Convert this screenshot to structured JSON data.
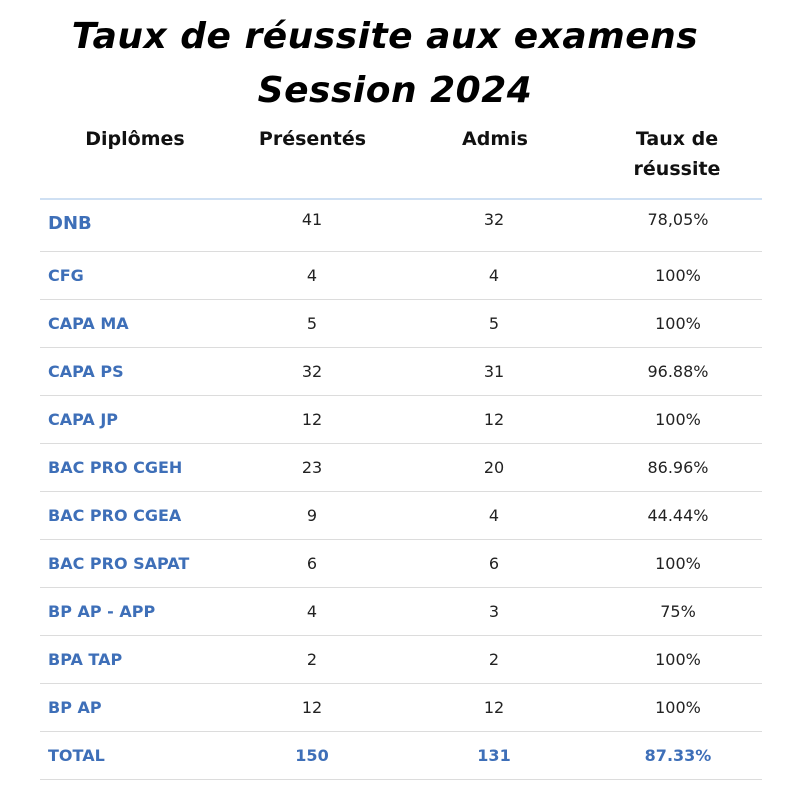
{
  "title": {
    "line1": "Taux de réussite aux examens",
    "line2": "Session 2024"
  },
  "table": {
    "headers": [
      "Diplômes",
      "Présentés",
      "Admis",
      "Taux de réussite"
    ],
    "rows": [
      {
        "diplome": "DNB",
        "presentes": "41",
        "admis": "32",
        "taux": "78,05%"
      },
      {
        "diplome": "CFG",
        "presentes": "4",
        "admis": "4",
        "taux": "100%"
      },
      {
        "diplome": "CAPA MA",
        "presentes": "5",
        "admis": "5",
        "taux": "100%"
      },
      {
        "diplome": "CAPA PS",
        "presentes": "32",
        "admis": "31",
        "taux": "96.88%"
      },
      {
        "diplome": "CAPA JP",
        "presentes": "12",
        "admis": "12",
        "taux": "100%"
      },
      {
        "diplome": "BAC PRO CGEH",
        "presentes": "23",
        "admis": "20",
        "taux": "86.96%"
      },
      {
        "diplome": "BAC PRO CGEA",
        "presentes": "9",
        "admis": "4",
        "taux": "44.44%"
      },
      {
        "diplome": "BAC PRO SAPAT",
        "presentes": "6",
        "admis": "6",
        "taux": "100%"
      },
      {
        "diplome": "BP AP - APP",
        "presentes": "4",
        "admis": "3",
        "taux": "75%"
      },
      {
        "diplome": "BPA TAP",
        "presentes": "2",
        "admis": "2",
        "taux": "100%"
      },
      {
        "diplome": "BP AP",
        "presentes": "12",
        "admis": "12",
        "taux": "100%"
      },
      {
        "diplome": "TOTAL",
        "presentes": "150",
        "admis": "131",
        "taux": "87.33%"
      }
    ]
  },
  "colors": {
    "accent": "#3e6fb8",
    "header_rule": "#cfe0f3",
    "row_rule": "#dcdcdc"
  }
}
